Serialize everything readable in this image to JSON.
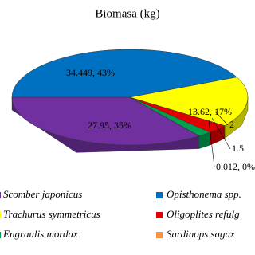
{
  "chart_data": {
    "type": "pie3d",
    "title": "Biomasa (kg)",
    "categories": [
      "Scomber japonicus",
      "Opisthonema spp.",
      "Trachurus symmetricus",
      "Oligoplites refulg",
      "Engraulis mordax",
      "Sardinops sagax"
    ],
    "values": [
      27.95,
      34.449,
      13.62,
      2.4,
      1.5,
      0.012
    ],
    "value_labels": [
      "27.95, 35%",
      "34.449, 43%",
      "13.62, 17%",
      "2",
      "1.5",
      "0.012, 0%"
    ],
    "colors": [
      "#7030a0",
      "#0070c0",
      "#ffff00",
      "#e00000",
      "#00a050",
      "#f79646"
    ]
  }
}
